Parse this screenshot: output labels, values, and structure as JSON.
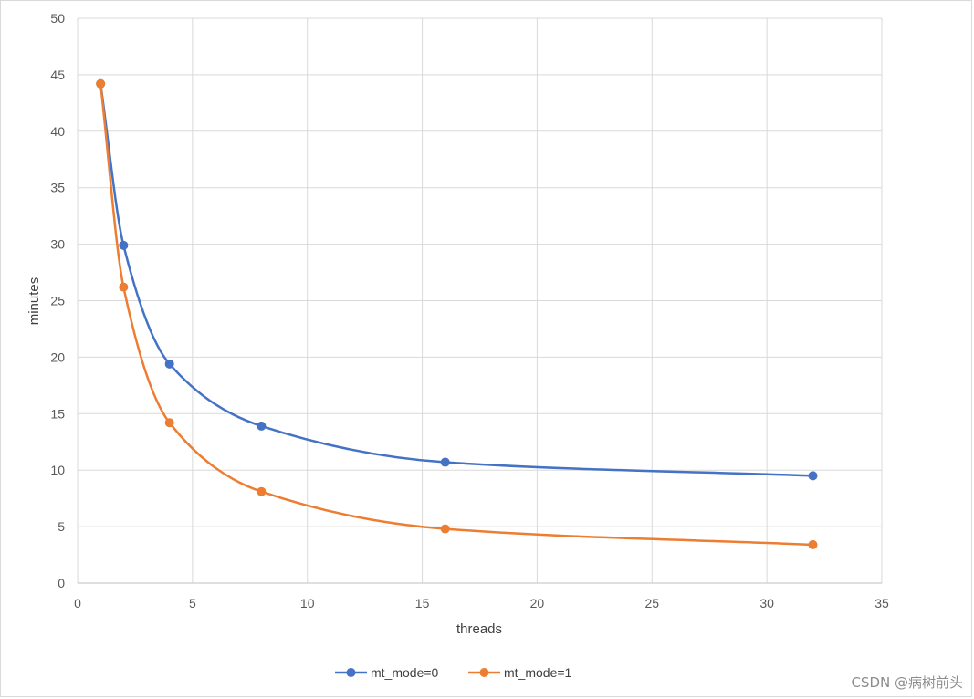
{
  "chart_data": {
    "type": "line",
    "xlabel": "threads",
    "ylabel": "minutes",
    "xlim": [
      0,
      35
    ],
    "ylim": [
      0,
      50
    ],
    "xticks": [
      0,
      5,
      10,
      15,
      20,
      25,
      30,
      35
    ],
    "yticks": [
      0,
      5,
      10,
      15,
      20,
      25,
      30,
      35,
      40,
      45,
      50
    ],
    "grid": true,
    "smooth": true,
    "legend_position": "bottom",
    "x": [
      1,
      2,
      4,
      8,
      16,
      32
    ],
    "series": [
      {
        "name": "mt_mode=0",
        "color": "#4472c4",
        "values": [
          44.2,
          29.9,
          19.4,
          13.9,
          10.7,
          9.5
        ]
      },
      {
        "name": "mt_mode=1",
        "color": "#ed7d31",
        "values": [
          44.2,
          26.2,
          14.2,
          8.1,
          4.8,
          3.4
        ]
      }
    ]
  },
  "watermark": "CSDN @病树前头"
}
